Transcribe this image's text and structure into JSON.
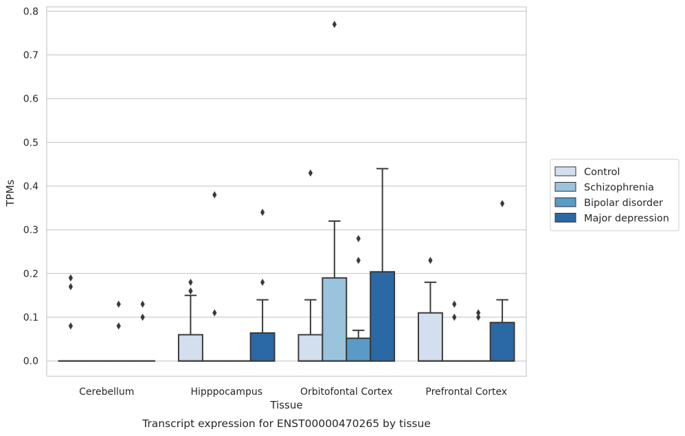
{
  "chart_data": {
    "type": "boxplot",
    "caption": "Transcript expression for ENST00000470265 by tissue",
    "xlabel": "Tissue",
    "ylabel": "TPMs",
    "ylim": [
      -0.035,
      0.81
    ],
    "yticks": [
      0.0,
      0.1,
      0.2,
      0.3,
      0.4,
      0.5,
      0.6,
      0.7,
      0.8
    ],
    "ytick_labels": [
      "0.0",
      "0.1",
      "0.2",
      "0.3",
      "0.4",
      "0.5",
      "0.6",
      "0.7",
      "0.8"
    ],
    "grid": "horizontal",
    "legend_position": "right",
    "categories": [
      "Cerebellum",
      "Hipppocampus",
      "Orbitofontal Cortex",
      "Prefrontal Cortex"
    ],
    "series": [
      {
        "name": "Control",
        "color": "#d1dfef",
        "boxes": [
          {
            "q1": 0,
            "median": 0,
            "q3": 0,
            "whisker_low": 0,
            "whisker_high": 0,
            "outliers": [
              0.19,
              0.17,
              0.08
            ]
          },
          {
            "q1": 0,
            "median": 0,
            "q3": 0.06,
            "whisker_low": 0,
            "whisker_high": 0.15,
            "outliers": [
              0.18,
              0.16
            ]
          },
          {
            "q1": 0,
            "median": 0,
            "q3": 0.06,
            "whisker_low": 0,
            "whisker_high": 0.14,
            "outliers": [
              0.43
            ]
          },
          {
            "q1": 0,
            "median": 0,
            "q3": 0.11,
            "whisker_low": 0,
            "whisker_high": 0.18,
            "outliers": [
              0.23
            ]
          }
        ]
      },
      {
        "name": "Schizophrenia",
        "color": "#9ac3dc",
        "boxes": [
          {
            "q1": 0,
            "median": 0,
            "q3": 0,
            "whisker_low": 0,
            "whisker_high": 0,
            "outliers": []
          },
          {
            "q1": 0,
            "median": 0,
            "q3": 0,
            "whisker_low": 0,
            "whisker_high": 0,
            "outliers": [
              0.38,
              0.11
            ]
          },
          {
            "q1": 0,
            "median": 0,
            "q3": 0.19,
            "whisker_low": 0,
            "whisker_high": 0.32,
            "outliers": [
              0.77
            ]
          },
          {
            "q1": 0,
            "median": 0,
            "q3": 0,
            "whisker_low": 0,
            "whisker_high": 0,
            "outliers": [
              0.13,
              0.1
            ]
          }
        ]
      },
      {
        "name": "Bipolar disorder",
        "color": "#5a9ac6",
        "boxes": [
          {
            "q1": 0,
            "median": 0,
            "q3": 0,
            "whisker_low": 0,
            "whisker_high": 0,
            "outliers": [
              0.13,
              0.08
            ]
          },
          {
            "q1": 0,
            "median": 0,
            "q3": 0,
            "whisker_low": 0,
            "whisker_high": 0,
            "outliers": []
          },
          {
            "q1": 0,
            "median": 0,
            "q3": 0.052,
            "whisker_low": 0,
            "whisker_high": 0.07,
            "outliers": [
              0.28,
              0.23
            ]
          },
          {
            "q1": 0,
            "median": 0,
            "q3": 0,
            "whisker_low": 0,
            "whisker_high": 0,
            "outliers": [
              0.11,
              0.1
            ]
          }
        ]
      },
      {
        "name": "Major depression",
        "color": "#2a68a6",
        "boxes": [
          {
            "q1": 0,
            "median": 0,
            "q3": 0,
            "whisker_low": 0,
            "whisker_high": 0,
            "outliers": [
              0.13,
              0.1
            ]
          },
          {
            "q1": 0,
            "median": 0,
            "q3": 0.064,
            "whisker_low": 0,
            "whisker_high": 0.14,
            "outliers": [
              0.34,
              0.18
            ]
          },
          {
            "q1": 0,
            "median": 0,
            "q3": 0.204,
            "whisker_low": 0,
            "whisker_high": 0.44,
            "outliers": []
          },
          {
            "q1": 0,
            "median": 0,
            "q3": 0.088,
            "whisker_low": 0,
            "whisker_high": 0.14,
            "outliers": [
              0.36
            ]
          }
        ]
      }
    ]
  }
}
